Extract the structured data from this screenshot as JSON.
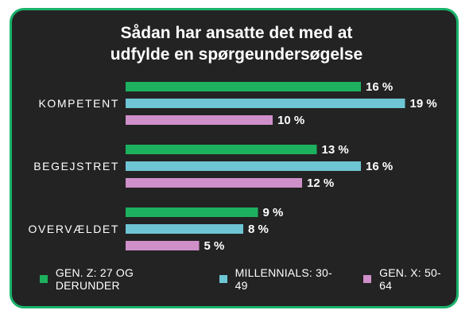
{
  "chart_data": {
    "type": "bar",
    "orientation": "horizontal",
    "title_lines": [
      "Sådan har ansatte det med at",
      "udfylde en spørgeundersøgelse"
    ],
    "categories": [
      "KOMPETENT",
      "BEGEJSTRET",
      "OVERVÆLDET"
    ],
    "series": [
      {
        "name": "GEN. Z: 27 OG DERUNDER",
        "color": "#1db15f",
        "values": [
          16,
          13,
          9
        ],
        "labels": [
          "16 %",
          "13 %",
          "9 %"
        ]
      },
      {
        "name": "MILLENNIALS: 30-49",
        "color": "#6ec5d4",
        "values": [
          19,
          16,
          8
        ],
        "labels": [
          "19 %",
          "16 %",
          "8 %"
        ]
      },
      {
        "name": "GEN. X: 50-64",
        "color": "#cf8fc9",
        "values": [
          10,
          12,
          5
        ],
        "labels": [
          "10 %",
          "12 %",
          "5 %"
        ]
      }
    ],
    "xlim": [
      0,
      20
    ],
    "legend_position": "bottom",
    "grid": false
  }
}
